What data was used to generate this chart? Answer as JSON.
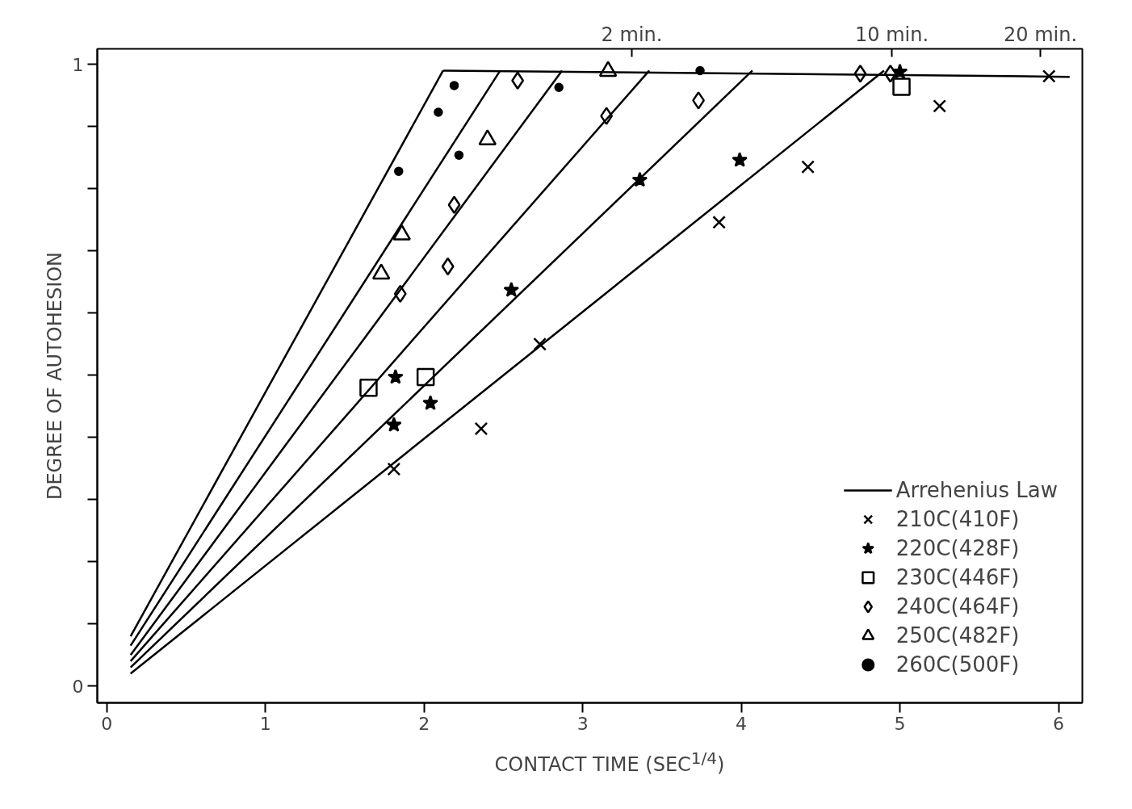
{
  "chart_data": {
    "type": "scatter",
    "xlabel": "CONTACT TIME (SEC$^{1/4}$)",
    "ylabel": "DEGREE OF AUTOHESION",
    "xlim": [
      -0.06,
      6.15
    ],
    "ylim": [
      -0.027,
      1.025
    ],
    "xticks": [
      0,
      1,
      2,
      3,
      4,
      5,
      6
    ],
    "yticks": [
      0,
      {
        "value": 0.1,
        "label": null
      },
      {
        "value": 0.2,
        "label": null
      },
      {
        "value": 0.3,
        "label": null
      },
      {
        "value": 0.4,
        "label": null
      },
      {
        "value": 0.5,
        "label": null
      },
      {
        "value": 0.6,
        "label": null
      },
      {
        "value": 0.7,
        "label": null
      },
      {
        "value": 0.8,
        "label": null
      },
      {
        "value": 0.9,
        "label": null
      },
      1
    ],
    "annotations": [
      "2 min.",
      "10 min.",
      "20 min."
    ],
    "grid": false,
    "legend": "bottom right",
    "series": [
      {
        "type": "line",
        "name": "Arrehenius Law",
        "color": "#000000",
        "marker": "none",
        "x": [
          0.15,
          4.9
        ],
        "values": [
          0.02,
          0.99
        ]
      },
      {
        "type": "line",
        "color": "#000000",
        "marker": "none",
        "x": [
          0.15,
          4.07
        ],
        "values": [
          0.03,
          0.99
        ]
      },
      {
        "type": "line",
        "color": "#000000",
        "marker": "none",
        "x": [
          0.15,
          3.42
        ],
        "values": [
          0.04,
          0.99
        ]
      },
      {
        "type": "line",
        "color": "#000000",
        "marker": "none",
        "x": [
          0.15,
          2.87
        ],
        "values": [
          0.05,
          0.99
        ]
      },
      {
        "type": "line",
        "color": "#000000",
        "marker": "none",
        "x": [
          0.15,
          2.48
        ],
        "values": [
          0.065,
          0.99
        ]
      },
      {
        "type": "line",
        "color": "#000000",
        "marker": "none",
        "x": [
          0.15,
          2.12
        ],
        "values": [
          0.08,
          0.99
        ]
      },
      {
        "type": "line",
        "color": "#000000",
        "marker": "none",
        "x": [
          2.12,
          6.07
        ],
        "values": [
          0.99,
          0.98
        ]
      },
      {
        "name": "210C(410F)",
        "color": "#000000",
        "marker": "cross",
        "x": [
          1.81,
          2.36,
          2.73,
          3.86,
          4.42,
          5.25,
          5.94
        ],
        "values": [
          0.349,
          0.414,
          0.55,
          0.746,
          0.835,
          0.933,
          0.981
        ]
      },
      {
        "name": "220C(428F)",
        "color": "#000000",
        "marker": "star",
        "x": [
          1.81,
          1.82,
          2.04,
          2.55,
          3.36,
          3.99,
          5.0
        ],
        "values": [
          0.42,
          0.497,
          0.455,
          0.637,
          0.814,
          0.846,
          0.988
        ]
      },
      {
        "name": "230C(446F)",
        "color": "#000000",
        "marker": "square",
        "x": [
          1.65,
          2.01,
          5.01
        ],
        "values": [
          0.48,
          0.497,
          0.964
        ]
      },
      {
        "name": "240C(464F)",
        "color": "#000000",
        "marker": "diamond",
        "x": [
          1.85,
          2.15,
          2.19,
          2.59,
          3.15,
          3.73,
          4.75,
          4.94
        ],
        "values": [
          0.631,
          0.675,
          0.774,
          0.974,
          0.917,
          0.942,
          0.985,
          0.985
        ]
      },
      {
        "name": "250C(482F)",
        "color": "#000000",
        "marker": "triangle",
        "x": [
          1.73,
          1.86,
          2.4,
          3.16
        ],
        "values": [
          0.663,
          0.726,
          0.879,
          0.989
        ]
      },
      {
        "name": "260C(500F)",
        "color": "#000000",
        "marker": "circle",
        "x": [
          1.84,
          2.09,
          2.19,
          2.22,
          2.85,
          3.74
        ],
        "values": [
          0.828,
          0.923,
          0.966,
          0.854,
          0.963,
          0.99
        ]
      }
    ]
  }
}
